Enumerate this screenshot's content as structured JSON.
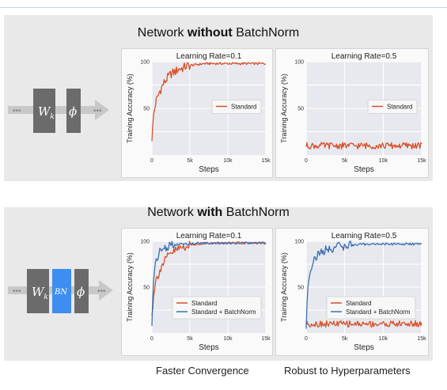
{
  "top_section": {
    "title_pre": "Network ",
    "title_bold": "without",
    "title_post": " BatchNorm",
    "diagram": {
      "blocks": [
        "W_k",
        "ϕ"
      ],
      "arrow_dots": "•••"
    }
  },
  "bottom_section": {
    "title_pre": "Network ",
    "title_bold": "with",
    "title_post": " BatchNorm",
    "diagram": {
      "blocks": [
        "W_k",
        "BN",
        "ϕ"
      ],
      "arrow_dots": "•••",
      "bn_color": "#3d8ef0"
    },
    "captions": [
      "Faster Convergence",
      "Robust to Hyperparameters"
    ]
  },
  "colors": {
    "standard": "#d6502a",
    "batchnorm": "#3a6fb0",
    "plot_bg": "#e8e9ee",
    "grid": "#ffffff"
  },
  "chart_data": [
    {
      "type": "line",
      "title": "Learning Rate=0.1",
      "xlabel": "Steps",
      "ylabel": "Training Accuracy (%)",
      "xlim": [
        0,
        15000
      ],
      "ylim": [
        0,
        100
      ],
      "x_ticks": [
        {
          "v": 0,
          "label": "0"
        },
        {
          "v": 5000,
          "label": "5k"
        },
        {
          "v": 10000,
          "label": "10k"
        },
        {
          "v": 15000,
          "label": "15k"
        }
      ],
      "y_ticks": [
        {
          "v": 50,
          "label": "50"
        },
        {
          "v": 100,
          "label": "100"
        }
      ],
      "legend_position": "center-right",
      "series": [
        {
          "name": "Standard",
          "color": "#d6502a",
          "x": [
            0,
            250,
            500,
            750,
            1000,
            1250,
            1500,
            2000,
            2500,
            3000,
            3500,
            4000,
            4500,
            5000,
            6000,
            7000,
            8000,
            9000,
            10000,
            11000,
            12000,
            13000,
            14000,
            15000
          ],
          "y": [
            18,
            45,
            56,
            62,
            68,
            72,
            76,
            82,
            87,
            89,
            92,
            93,
            95,
            96,
            97,
            98,
            98,
            98,
            98,
            98,
            98,
            98,
            98,
            98
          ]
        }
      ]
    },
    {
      "type": "line",
      "title": "Learning Rate=0.5",
      "xlabel": "Steps",
      "ylabel": "Training Accuracy (%)",
      "xlim": [
        0,
        15000
      ],
      "ylim": [
        0,
        100
      ],
      "x_ticks": [
        {
          "v": 0,
          "label": "0"
        },
        {
          "v": 5000,
          "label": "5k"
        },
        {
          "v": 10000,
          "label": "10k"
        },
        {
          "v": 15000,
          "label": "15k"
        }
      ],
      "y_ticks": [
        {
          "v": 50,
          "label": "50"
        },
        {
          "v": 100,
          "label": "100"
        }
      ],
      "legend_position": "center-right",
      "series": [
        {
          "name": "Standard",
          "color": "#d6502a",
          "x": [
            0,
            1000,
            2000,
            3000,
            4000,
            5000,
            6000,
            7000,
            8000,
            9000,
            10000,
            11000,
            12000,
            13000,
            14000,
            15000
          ],
          "y": [
            10,
            10,
            10,
            10,
            10,
            10,
            10,
            10,
            10,
            10,
            10,
            10,
            10,
            10,
            10,
            10
          ]
        }
      ]
    },
    {
      "type": "line",
      "title": "Learning Rate=0.1",
      "xlabel": "Steps",
      "ylabel": "Training Accuracy (%)",
      "xlim": [
        0,
        15000
      ],
      "ylim": [
        0,
        100
      ],
      "x_ticks": [
        {
          "v": 0,
          "label": "0"
        },
        {
          "v": 5000,
          "label": "5k"
        },
        {
          "v": 10000,
          "label": "10k"
        },
        {
          "v": 15000,
          "label": "15k"
        }
      ],
      "y_ticks": [
        {
          "v": 50,
          "label": "50"
        },
        {
          "v": 100,
          "label": "100"
        }
      ],
      "legend_position": "lower-center",
      "series": [
        {
          "name": "Standard",
          "color": "#d6502a",
          "x": [
            0,
            250,
            500,
            750,
            1000,
            1250,
            1500,
            2000,
            2500,
            3000,
            3500,
            4000,
            4500,
            5000,
            6000,
            7000,
            8000,
            9000,
            10000,
            11000,
            12000,
            13000,
            14000,
            15000
          ],
          "y": [
            18,
            45,
            56,
            62,
            68,
            72,
            76,
            82,
            87,
            89,
            92,
            93,
            95,
            96,
            97,
            98,
            98,
            98,
            98,
            98,
            98,
            98,
            98,
            98
          ]
        },
        {
          "name": "Standard + BatchNorm",
          "color": "#3a6fb0",
          "x": [
            0,
            150,
            300,
            500,
            750,
            1000,
            1500,
            2000,
            2500,
            3000,
            4000,
            5000,
            6000,
            8000,
            10000,
            12000,
            15000
          ],
          "y": [
            6,
            50,
            68,
            78,
            84,
            88,
            92,
            94,
            95,
            96,
            97,
            97,
            98,
            98,
            98,
            98,
            98
          ]
        }
      ]
    },
    {
      "type": "line",
      "title": "Learning Rate=0.5",
      "xlabel": "Steps",
      "ylabel": "Training Accuracy (%)",
      "xlim": [
        0,
        15000
      ],
      "ylim": [
        0,
        100
      ],
      "x_ticks": [
        {
          "v": 0,
          "label": "0"
        },
        {
          "v": 5000,
          "label": "5k"
        },
        {
          "v": 10000,
          "label": "10k"
        },
        {
          "v": 15000,
          "label": "15k"
        }
      ],
      "y_ticks": [
        {
          "v": 50,
          "label": "50"
        },
        {
          "v": 100,
          "label": "100"
        }
      ],
      "legend_position": "lower-center",
      "series": [
        {
          "name": "Standard",
          "color": "#d6502a",
          "x": [
            0,
            1000,
            2000,
            3000,
            4000,
            5000,
            6000,
            7000,
            8000,
            9000,
            10000,
            11000,
            12000,
            13000,
            14000,
            15000
          ],
          "y": [
            10,
            10,
            10,
            10,
            10,
            10,
            10,
            10,
            10,
            10,
            10,
            10,
            10,
            10,
            10,
            10
          ]
        },
        {
          "name": "Standard + BatchNorm",
          "color": "#3a6fb0",
          "x": [
            0,
            150,
            300,
            500,
            750,
            1000,
            1500,
            2000,
            2500,
            3000,
            4000,
            5000,
            6000,
            8000,
            10000,
            12000,
            15000
          ],
          "y": [
            6,
            40,
            58,
            68,
            75,
            80,
            85,
            88,
            90,
            92,
            94,
            95,
            96,
            97,
            97,
            97,
            97
          ]
        }
      ]
    }
  ]
}
